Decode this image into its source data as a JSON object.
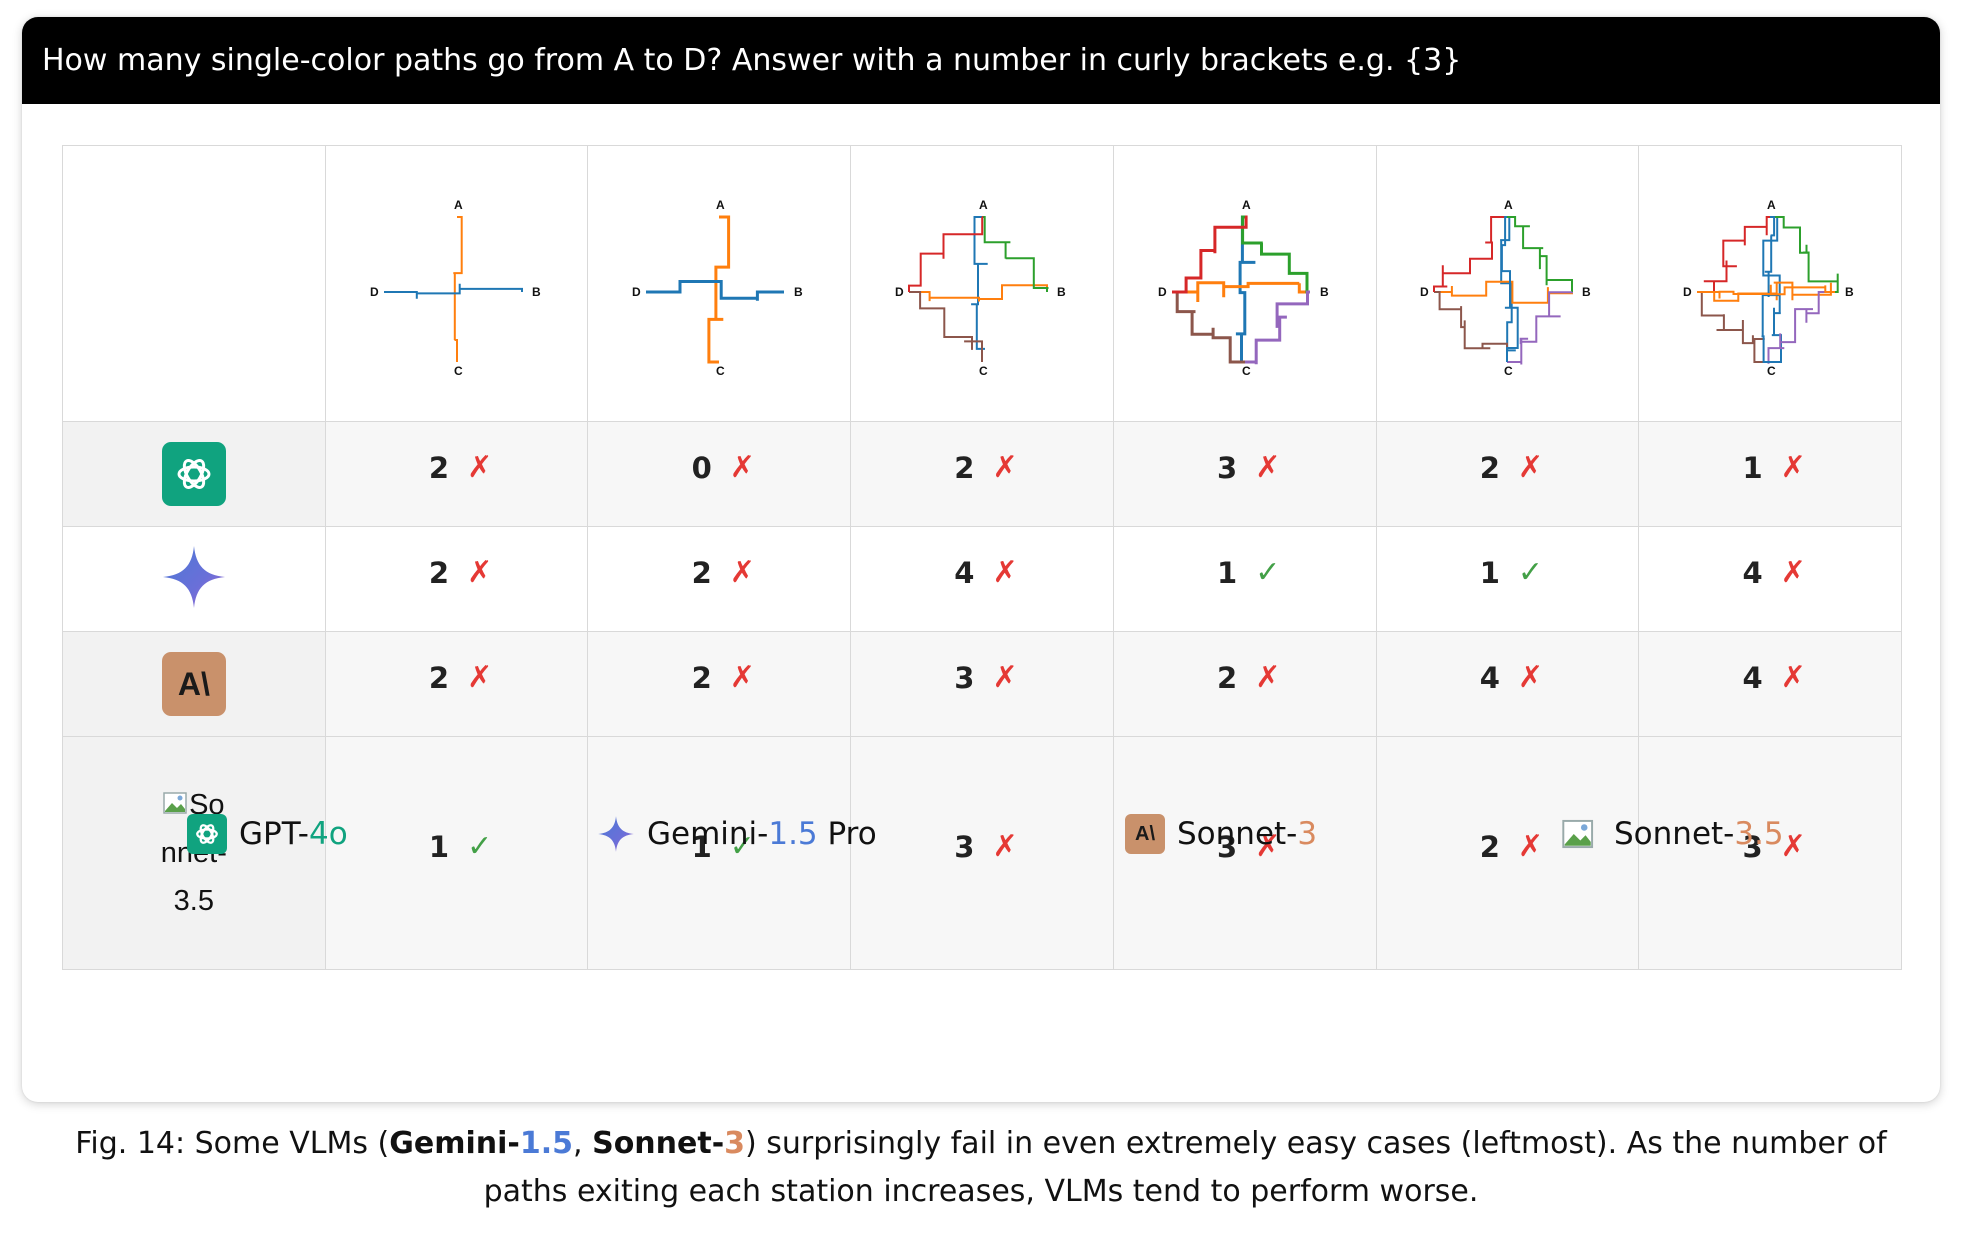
{
  "question": "How many single-color paths go from A to D? Answer with a number in curly brackets e.g. {3}",
  "station_labels": {
    "a": "A",
    "b": "B",
    "c": "C",
    "d": "D"
  },
  "colors": {
    "wrong": "#e53935",
    "right": "#43a047",
    "gpt": "#10a37f",
    "claude": "#c9916b",
    "gemini_blue": "#4b7ad6",
    "sonnet_orange": "#d98a5f",
    "path_blue": "#1f77b4",
    "path_orange": "#ff7f0e",
    "path_green": "#2ca02c",
    "path_brown": "#8c564b",
    "path_red": "#d62728",
    "path_purple": "#9467bd"
  },
  "marks": {
    "wrong": "✗",
    "right": "✓"
  },
  "models": [
    {
      "key": "gpt4o",
      "results": [
        {
          "value": "2",
          "correct": false
        },
        {
          "value": "0",
          "correct": false
        },
        {
          "value": "2",
          "correct": false
        },
        {
          "value": "3",
          "correct": false
        },
        {
          "value": "2",
          "correct": false
        },
        {
          "value": "1",
          "correct": false
        }
      ]
    },
    {
      "key": "gemini",
      "results": [
        {
          "value": "2",
          "correct": false
        },
        {
          "value": "2",
          "correct": false
        },
        {
          "value": "4",
          "correct": false
        },
        {
          "value": "1",
          "correct": true
        },
        {
          "value": "1",
          "correct": true
        },
        {
          "value": "4",
          "correct": false
        }
      ]
    },
    {
      "key": "sonnet3",
      "logo_text": "A\\",
      "results": [
        {
          "value": "2",
          "correct": false
        },
        {
          "value": "2",
          "correct": false
        },
        {
          "value": "3",
          "correct": false
        },
        {
          "value": "2",
          "correct": false
        },
        {
          "value": "4",
          "correct": false
        },
        {
          "value": "4",
          "correct": false
        }
      ]
    },
    {
      "key": "sonnet35",
      "broken_alt": "Sonnet-3.5",
      "results": [
        {
          "value": "1",
          "correct": true
        },
        {
          "value": "1",
          "correct": true
        },
        {
          "value": "3",
          "correct": false
        },
        {
          "value": "3",
          "correct": false
        },
        {
          "value": "2",
          "correct": false
        },
        {
          "value": "3",
          "correct": false
        }
      ]
    }
  ],
  "legend": {
    "gpt": {
      "name": "GPT-",
      "version": "4o"
    },
    "gemini": {
      "name": "Gemini-",
      "version": "1.5",
      "suffix": " Pro"
    },
    "sonnet3": {
      "logo_text": "A\\",
      "name": "Sonnet-",
      "version": "3"
    },
    "sonnet35": {
      "name": "Sonnet-",
      "version": "3.5"
    }
  },
  "caption": {
    "prefix": "Fig. 14: Some VLMs (",
    "m1_name": "Gemini-",
    "m1_version": "1.5",
    "sep": ", ",
    "m2_name": "Sonnet-",
    "m2_version": "3",
    "suffix": ") surprisingly fail in even extremely easy cases (leftmost). As the number of paths exiting each station increases, VLMs tend to perform worse."
  }
}
